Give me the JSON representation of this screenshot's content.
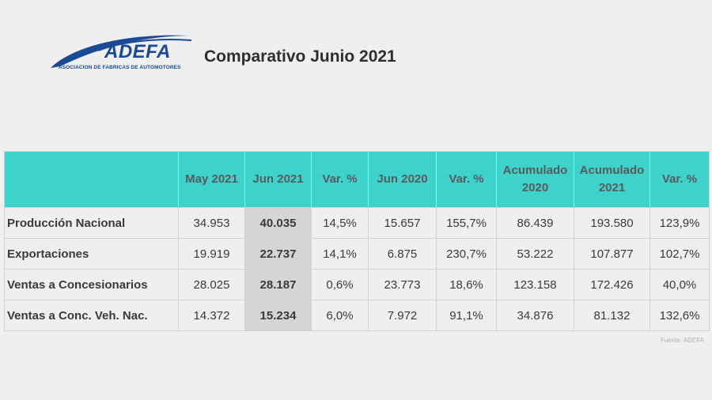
{
  "logo": {
    "word": "ADEFA",
    "tagline": "ASOCIACION DE FABRICAS DE AUTOMOTORES",
    "color": "#1a4a95"
  },
  "title": "Comparativo Junio 2021",
  "table": {
    "header_color": "#3ed2cd",
    "highlight_color": "#d5d5d5",
    "columns": [
      "",
      "May 2021",
      "Jun 2021",
      "Var. %",
      "Jun 2020",
      "Var. %",
      "Acumulado\n2020",
      "Acumulado\n2021",
      "Var. %"
    ],
    "rows": [
      {
        "label": "Producción Nacional",
        "values": [
          "34.953",
          "40.035",
          "14,5%",
          "15.657",
          "155,7%",
          "86.439",
          "193.580",
          "123,9%"
        ]
      },
      {
        "label": "Exportaciones",
        "values": [
          "19.919",
          "22.737",
          "14,1%",
          "6.875",
          "230,7%",
          "53.222",
          "107.877",
          "102,7%"
        ]
      },
      {
        "label": "Ventas a Concesionarios",
        "values": [
          "28.025",
          "28.187",
          "0,6%",
          "23.773",
          "18,6%",
          "123.158",
          "172.426",
          "40,0%"
        ]
      },
      {
        "label": "Ventas a Conc. Veh. Nac.",
        "values": [
          "14.372",
          "15.234",
          "6,0%",
          "7.972",
          "91,1%",
          "34.876",
          "81.132",
          "132,6%"
        ]
      }
    ]
  },
  "source": "Fuente: ADEFA"
}
